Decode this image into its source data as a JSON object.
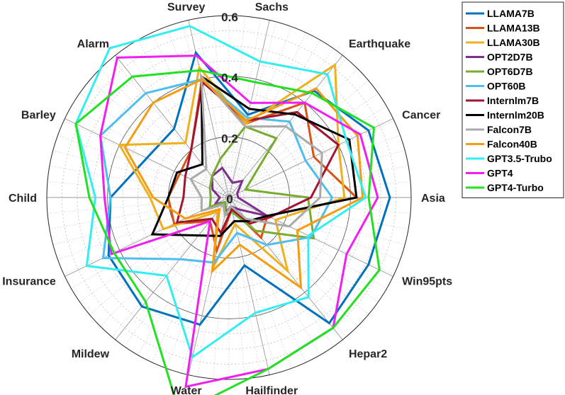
{
  "chart_data": {
    "type": "radar",
    "categories": [
      "Sachs",
      "Earthquake",
      "Cancer",
      "Asia",
      "Win95pts",
      "Hepar2",
      "Hailfinder",
      "Water",
      "Mildew",
      "Insurance",
      "Child",
      "Barley",
      "Alarm",
      "Survey"
    ],
    "rlim": [
      0,
      0.6
    ],
    "tick_values": [
      0,
      0.2,
      0.4,
      0.6
    ],
    "tick_labels": [
      "0",
      "0.2",
      "0.4",
      "0.6"
    ],
    "grid": true,
    "legend_position": "top-right",
    "series": [
      {
        "name": "LLAMA7B",
        "color": "#0072BD",
        "values": [
          0.28,
          0.45,
          0.51,
          0.53,
          0.51,
          0.53,
          0.23,
          0.43,
          0.46,
          0.44,
          0.39,
          0.3,
          0.29,
          0.49
        ]
      },
      {
        "name": "LLAMA13B",
        "color": "#D95319",
        "values": [
          0.25,
          0.4,
          0.31,
          0.42,
          0.14,
          0.17,
          0.04,
          0.18,
          0.1,
          0.2,
          0.2,
          0.18,
          0.2,
          0.4
        ]
      },
      {
        "name": "LLAMA30B",
        "color": "#EDB120",
        "values": [
          0.25,
          0.56,
          0.4,
          0.38,
          0.17,
          0.31,
          0.09,
          0.24,
          0.06,
          0.24,
          0.26,
          0.4,
          0.23,
          0.44
        ]
      },
      {
        "name": "OPT2D7B",
        "color": "#7E2F8E",
        "values": [
          0.05,
          0.07,
          0.03,
          0.03,
          0.14,
          0.05,
          0.03,
          0.05,
          0.02,
          0.05,
          0.03,
          0.06,
          0.09,
          0.1
        ]
      },
      {
        "name": "OPT6D7B",
        "color": "#77AC30",
        "values": [
          0.24,
          0.25,
          0.06,
          0.26,
          0.31,
          0.14,
          0.05,
          0.06,
          0.02,
          0.07,
          0.06,
          0.07,
          0.09,
          0.13
        ]
      },
      {
        "name": "OPT60B",
        "color": "#4DBEEE",
        "values": [
          0.27,
          0.32,
          0.28,
          0.34,
          0.3,
          0.2,
          0.12,
          0.22,
          0.26,
          0.46,
          0.39,
          0.47,
          0.44,
          0.4
        ]
      },
      {
        "name": "Internlm7B",
        "color": "#A2142F",
        "values": [
          0.26,
          0.36,
          0.4,
          0.27,
          0.15,
          0.11,
          0.04,
          0.12,
          0.09,
          0.19,
          0.15,
          0.16,
          0.2,
          0.39
        ]
      },
      {
        "name": "Internlm20B",
        "color": "#000000",
        "values": [
          0.3,
          0.35,
          0.44,
          0.42,
          0.14,
          0.1,
          0.08,
          0.13,
          0.16,
          0.28,
          0.2,
          0.19,
          0.14,
          0.41
        ]
      },
      {
        "name": "Falcon7B",
        "color": "#AAAAAA",
        "values": [
          0.24,
          0.3,
          0.34,
          0.3,
          0.22,
          0.09,
          0.03,
          0.06,
          0.03,
          0.1,
          0.09,
          0.14,
          0.12,
          0.41
        ]
      },
      {
        "name": "Falcon40B",
        "color": "#F39C12",
        "values": [
          0.26,
          0.46,
          0.47,
          0.44,
          0.25,
          0.38,
          0.16,
          0.25,
          0.05,
          0.16,
          0.25,
          0.38,
          0.4,
          0.4
        ]
      },
      {
        "name": "GPT3.5-Trubo",
        "color": "#33EEF0",
        "values": [
          0.46,
          0.52,
          0.43,
          0.45,
          0.29,
          0.42,
          0.39,
          0.54,
          0.33,
          0.52,
          0.44,
          0.56,
          0.63,
          0.58
        ]
      },
      {
        "name": "GPT4",
        "color": "#F01EF0",
        "values": [
          0.32,
          0.4,
          0.48,
          0.49,
          0.43,
          0.55,
          0.58,
          0.64,
          0.1,
          0.43,
          0.41,
          0.47,
          0.59,
          0.48
        ]
      },
      {
        "name": "GPT4-Turbo",
        "color": "#22E022",
        "values": [
          0.39,
          0.44,
          0.53,
          0.46,
          0.55,
          0.55,
          0.58,
          0.73,
          0.44,
          0.42,
          0.46,
          0.56,
          0.51,
          0.43
        ]
      }
    ]
  }
}
